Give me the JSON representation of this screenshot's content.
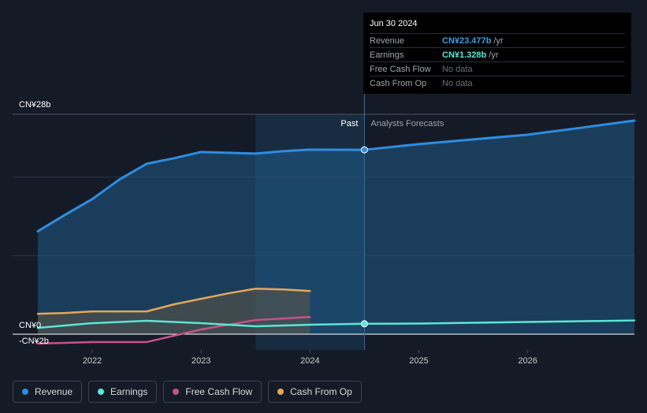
{
  "tooltip": {
    "date": "Jun 30 2024",
    "rows": [
      {
        "label": "Revenue",
        "value": "CN¥23.477b",
        "unit": "/yr",
        "color": "#3b9ee8"
      },
      {
        "label": "Earnings",
        "value": "CN¥1.328b",
        "unit": "/yr",
        "color": "#5ce5d5"
      },
      {
        "label": "Free Cash Flow",
        "value": "No data",
        "unit": ""
      },
      {
        "label": "Cash From Op",
        "value": "No data",
        "unit": ""
      }
    ]
  },
  "legend": [
    {
      "label": "Revenue",
      "color": "#2f8ce0"
    },
    {
      "label": "Earnings",
      "color": "#5ce5d5"
    },
    {
      "label": "Free Cash Flow",
      "color": "#c8508a"
    },
    {
      "label": "Cash From Op",
      "color": "#e5a65a"
    }
  ],
  "chart_data": {
    "type": "line",
    "title": "",
    "ylim": [
      -2,
      28
    ],
    "xlim": [
      2021.5,
      2026.98
    ],
    "y_tick_labels": [
      {
        "value": 28,
        "label": "CN¥28b"
      },
      {
        "value": 0,
        "label": "CN¥0"
      },
      {
        "value": -2,
        "label": "-CN¥2b"
      }
    ],
    "gridlines": [
      28,
      20,
      10
    ],
    "x_ticks": [
      {
        "value": 2022,
        "label": "2022"
      },
      {
        "value": 2023,
        "label": "2023"
      },
      {
        "value": 2024,
        "label": "2024"
      },
      {
        "value": 2025,
        "label": "2025"
      },
      {
        "value": 2026,
        "label": "2026"
      }
    ],
    "past_label": "Past",
    "forecast_label": "Analysts Forecasts",
    "past_region_start": 2023.5,
    "divider_x": 2024.5,
    "tooltip_marker_x": 2024.5,
    "series": [
      {
        "name": "Revenue",
        "color": "#2f8ce0",
        "area": true,
        "points": [
          [
            2021.5,
            13.1
          ],
          [
            2021.75,
            15.2
          ],
          [
            2022.0,
            17.2
          ],
          [
            2022.25,
            19.7
          ],
          [
            2022.5,
            21.7
          ],
          [
            2022.75,
            22.4
          ],
          [
            2023.0,
            23.2
          ],
          [
            2023.25,
            23.1
          ],
          [
            2023.5,
            23.0
          ],
          [
            2023.75,
            23.3
          ],
          [
            2024.0,
            23.5
          ],
          [
            2024.5,
            23.477
          ],
          [
            2025.0,
            24.2
          ],
          [
            2025.5,
            24.8
          ],
          [
            2026.0,
            25.4
          ],
          [
            2026.5,
            26.3
          ],
          [
            2026.98,
            27.2
          ]
        ]
      },
      {
        "name": "Earnings",
        "color": "#5ce5d5",
        "area": false,
        "points": [
          [
            2021.5,
            0.8
          ],
          [
            2022.0,
            1.4
          ],
          [
            2022.5,
            1.7
          ],
          [
            2023.0,
            1.4
          ],
          [
            2023.5,
            1.0
          ],
          [
            2024.0,
            1.2
          ],
          [
            2024.5,
            1.328
          ],
          [
            2025.0,
            1.35
          ],
          [
            2025.5,
            1.45
          ],
          [
            2026.0,
            1.55
          ],
          [
            2026.5,
            1.65
          ],
          [
            2026.98,
            1.75
          ]
        ]
      },
      {
        "name": "Free Cash Flow",
        "color": "#c8508a",
        "area": false,
        "points": [
          [
            2021.5,
            -1.2
          ],
          [
            2022.0,
            -1.0
          ],
          [
            2022.5,
            -1.0
          ],
          [
            2022.75,
            -0.2
          ],
          [
            2023.0,
            0.6
          ],
          [
            2023.25,
            1.2
          ],
          [
            2023.5,
            1.8
          ],
          [
            2023.75,
            2.0
          ],
          [
            2024.0,
            2.2
          ]
        ]
      },
      {
        "name": "Cash From Op",
        "color": "#e5a65a",
        "area": true,
        "points": [
          [
            2021.5,
            2.6
          ],
          [
            2021.75,
            2.7
          ],
          [
            2022.0,
            2.9
          ],
          [
            2022.5,
            2.9
          ],
          [
            2022.75,
            3.8
          ],
          [
            2023.0,
            4.5
          ],
          [
            2023.25,
            5.2
          ],
          [
            2023.5,
            5.8
          ],
          [
            2023.75,
            5.7
          ],
          [
            2024.0,
            5.5
          ]
        ]
      }
    ]
  }
}
